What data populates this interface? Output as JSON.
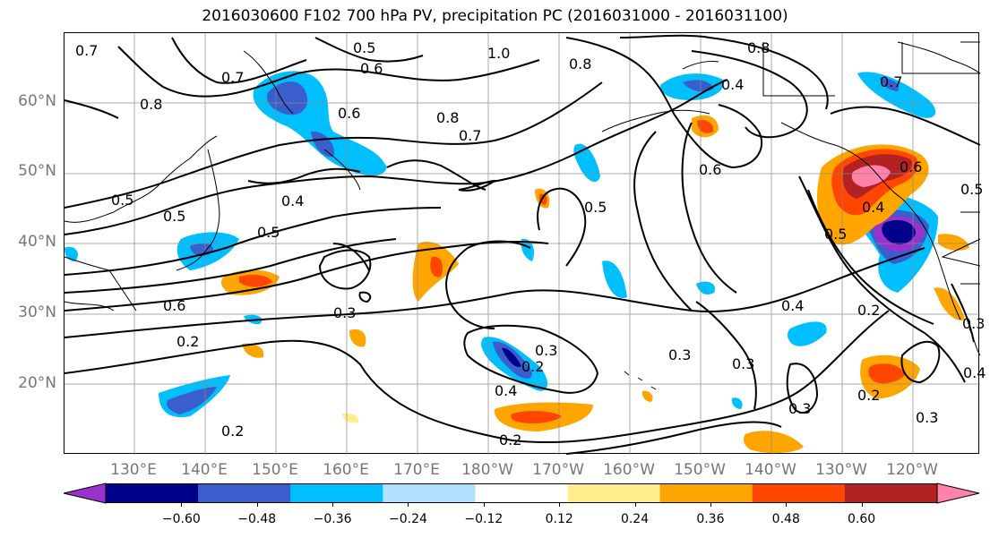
{
  "title": "2016030600 F102 700 hPa PV, precipitation PC (2016031000 - 2016031100)",
  "lat_labels": [
    "60°N",
    "50°N",
    "40°N",
    "30°N",
    "20°N"
  ],
  "lon_labels": [
    "130°E",
    "140°E",
    "150°E",
    "160°E",
    "170°E",
    "180°W",
    "170°W",
    "160°W",
    "150°W",
    "140°W",
    "130°W",
    "120°W"
  ],
  "contour_labels": [
    "0.7",
    "0.5",
    "0.6",
    "1.0",
    "0.8",
    "0.8",
    "0.7",
    "0.8",
    "0.6",
    "0.8",
    "0.7",
    "0.4",
    "0.6",
    "0.7",
    "0.5",
    "0.5",
    "0.4",
    "0.5",
    "0.5",
    "0.5",
    "0.6",
    "0.3",
    "0.2",
    "0.3",
    "0.2",
    "0.4",
    "0.3",
    "0.3",
    "0.3",
    "0.4",
    "0.2",
    "0.3",
    "0.2",
    "0.4",
    "0.2",
    "0.6",
    "0.3",
    "0.5",
    "0.2",
    "0.4"
  ],
  "colorbar": {
    "ticks": [
      "−0.60",
      "−0.48",
      "−0.36",
      "−0.24",
      "−0.12",
      "0.12",
      "0.24",
      "0.36",
      "0.48",
      "0.60"
    ],
    "colors": [
      "#9932cc",
      "#00008b",
      "#3a5fcd",
      "#00bfff",
      "#b0e2ff",
      "#ffffff",
      "#ffec8b",
      "#ffa500",
      "#ff4500",
      "#b22222",
      "#ff82ab"
    ]
  },
  "colors": {
    "neg_high": "#00008b",
    "neg_mid": "#3a5fcd",
    "neg_low": "#00bfff",
    "neg_faint": "#b0e2ff",
    "pos_faint": "#ffec8b",
    "pos_low": "#ffa500",
    "pos_mid": "#ff4500",
    "pos_high": "#b22222",
    "pos_max": "#ff82ab"
  }
}
